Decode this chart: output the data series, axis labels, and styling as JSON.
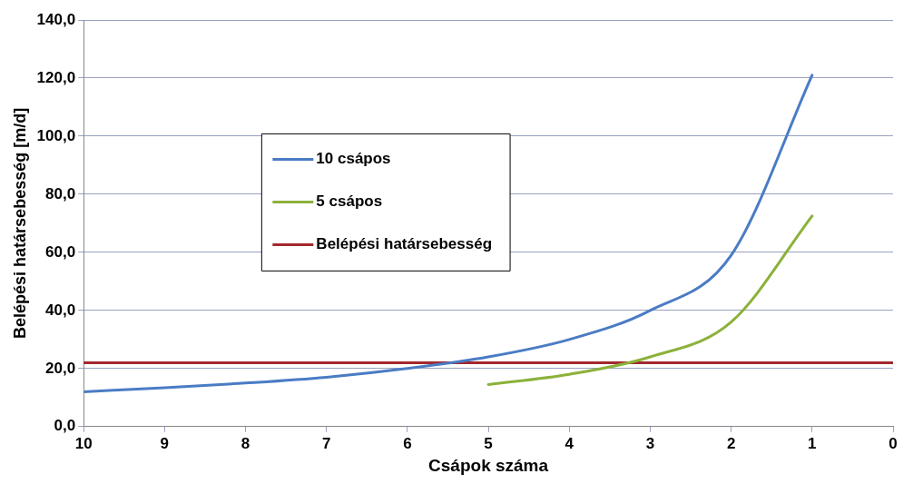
{
  "chart_data": {
    "type": "line",
    "xlabel": "Csápok száma",
    "ylabel": "Belépési határsebesség [m/d]",
    "xlim": [
      10,
      0
    ],
    "xticks": [
      10,
      9,
      8,
      7,
      6,
      5,
      4,
      3,
      2,
      1,
      0
    ],
    "ylim": [
      0,
      140
    ],
    "yticks": [
      {
        "value": 0,
        "label": "0,0"
      },
      {
        "value": 20,
        "label": "20,0"
      },
      {
        "value": 40,
        "label": "40,0"
      },
      {
        "value": 60,
        "label": "60,0"
      },
      {
        "value": 80,
        "label": "80,0"
      },
      {
        "value": 100,
        "label": "100,0"
      },
      {
        "value": 120,
        "label": "120,0"
      },
      {
        "value": 140,
        "label": "140,0"
      }
    ],
    "grid": "y",
    "legend": "top left",
    "marker": "none",
    "series": [
      {
        "name": "10 csápos",
        "color": "#4a7cc4",
        "x": [
          10,
          9,
          8,
          7,
          6,
          5,
          4,
          3,
          2,
          1
        ],
        "values": [
          12,
          13.4,
          15,
          17,
          20,
          24,
          30,
          40,
          59,
          121
        ]
      },
      {
        "name": "5 csápos",
        "color": "#8cb13a",
        "x": [
          5,
          4,
          3,
          2,
          1
        ],
        "values": [
          14.5,
          18,
          24,
          36,
          72.5
        ]
      },
      {
        "name": "Belépési határsebesség",
        "color": "#a3282d",
        "x": [
          10,
          0
        ],
        "values": [
          22,
          22
        ]
      }
    ]
  }
}
